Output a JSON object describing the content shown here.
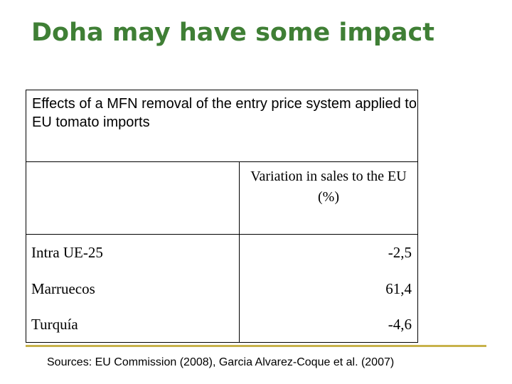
{
  "title": "Doha may have some impact",
  "table": {
    "caption": "Effects of a MFN removal of the entry price system applied to EU tomato imports",
    "column_header": "Variation in sales to the EU (%)",
    "rows": [
      {
        "label": "Intra UE-25",
        "value": "-2,5"
      },
      {
        "label": "Marruecos",
        "value": "61,4"
      },
      {
        "label": "Turquía",
        "value": "-4,6"
      }
    ]
  },
  "source": "Sources: EU Commission (2008), Garcia Alvarez-Coque et al. (2007)",
  "colors": {
    "title": "#3f7f35",
    "accent_line": "#c8b24a"
  }
}
